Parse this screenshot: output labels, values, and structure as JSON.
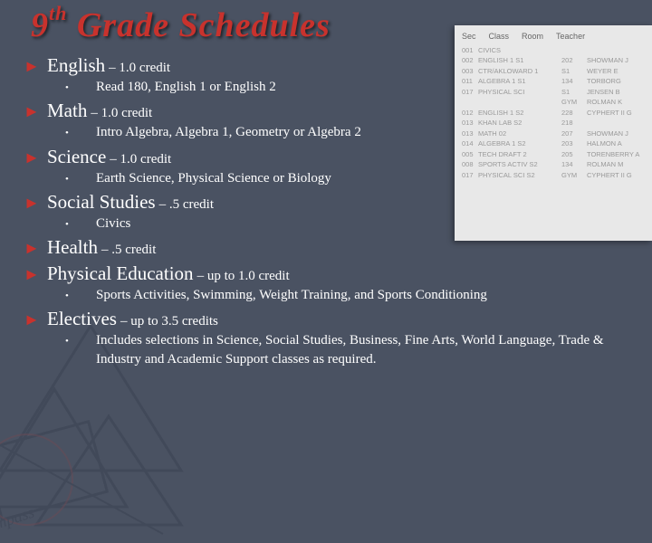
{
  "title_prefix": "9",
  "title_sup": "th",
  "title_rest": " Grade Schedules",
  "colors": {
    "background": "#4a5262",
    "accent": "#c8322d",
    "text": "#ffffff"
  },
  "schedule_panel": {
    "headers": [
      "Sec",
      "Class",
      "Room",
      "Teacher"
    ],
    "rows": [
      [
        "001",
        "CIVICS",
        "",
        ""
      ],
      [
        "002",
        "ENGLISH 1 S1",
        "202",
        "SHOWMAN J"
      ],
      [
        "003",
        "CTR/AKLOWARD 1",
        "S1",
        "WEYER E"
      ],
      [
        "011",
        "ALGEBRA 1 S1",
        "134",
        "TORBORG"
      ],
      [
        "017",
        "PHYSICAL SCI",
        "S1",
        "JENSEN B"
      ],
      [
        "",
        "",
        "GYM",
        "ROLMAN K"
      ],
      [
        "012",
        "ENGLISH 1 S2",
        "228",
        "CYPHERT II G"
      ],
      [
        "013",
        "KHAN LAB S2",
        "218",
        ""
      ],
      [
        "013",
        "MATH 02",
        "207",
        "SHOWMAN J"
      ],
      [
        "014",
        "ALGEBRA 1 S2",
        "203",
        "HALMON A"
      ],
      [
        "005",
        "TECH DRAFT 2",
        "205",
        "TORENBERRY A"
      ],
      [
        "008",
        "SPORTS ACTIV S2",
        "134",
        "ROLMAN M"
      ],
      [
        "017",
        "PHYSICAL SCI S2",
        "GYM",
        "CYPHERT II G"
      ]
    ]
  },
  "items": [
    {
      "subject": "English",
      "credit": " – 1.0 credit",
      "narrow": true,
      "subs": [
        "Read 180, English 1 or English 2"
      ]
    },
    {
      "subject": "Math",
      "credit": " – 1.0 credit",
      "narrow": true,
      "subs": [
        "Intro Algebra, Algebra 1, Geometry or Algebra 2"
      ]
    },
    {
      "subject": "Science",
      "credit": " – 1.0 credit",
      "narrow": true,
      "subs": [
        "Earth Science, Physical Science or Biology"
      ]
    },
    {
      "subject": "Social Studies",
      "credit": " – .5 credit",
      "narrow": true,
      "subs": [
        "Civics"
      ]
    },
    {
      "subject": "Health",
      "credit": " – .5 credit",
      "narrow": false,
      "subs": []
    },
    {
      "subject": "Physical Education",
      "credit": " – up to 1.0 credit",
      "narrow": false,
      "subs": [
        "Sports Activities, Swimming, Weight Training, and Sports Conditioning"
      ]
    },
    {
      "subject": "Electives",
      "credit": " – up to 3.5 credits",
      "narrow": false,
      "subs": [
        "Includes selections in Science, Social Studies, Business, Fine Arts, World Language, Trade & Industry and Academic Support classes as required."
      ]
    }
  ]
}
